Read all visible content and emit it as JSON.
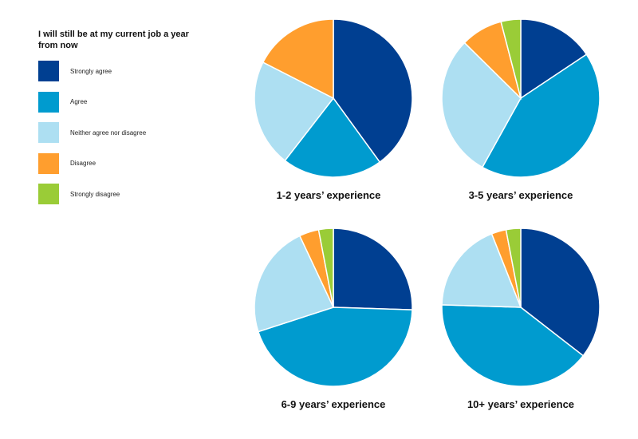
{
  "chart_data": {
    "type": "pie",
    "legend_title": "I will still be at my current job a year from now",
    "legend_position": "left",
    "categories": [
      "Strongly agree",
      "Agree",
      "Neither agree nor disagree",
      "Disagree",
      "Strongly disagree"
    ],
    "colors": [
      "#003f91",
      "#009bcf",
      "#addff2",
      "#ff9e2e",
      "#9acc37"
    ],
    "charts": [
      {
        "title": "1-2 years’ experience",
        "values": [
          40,
          20.5,
          22,
          17.5,
          0
        ]
      },
      {
        "title": "3-5 years’ experience",
        "values": [
          15.5,
          42,
          29,
          8.5,
          4
        ]
      },
      {
        "title": "6-9 years’ experience",
        "values": [
          25.5,
          44.5,
          23,
          4,
          3
        ]
      },
      {
        "title": "10+ years’ experience",
        "values": [
          35.5,
          40,
          18.5,
          3,
          3
        ]
      }
    ]
  }
}
